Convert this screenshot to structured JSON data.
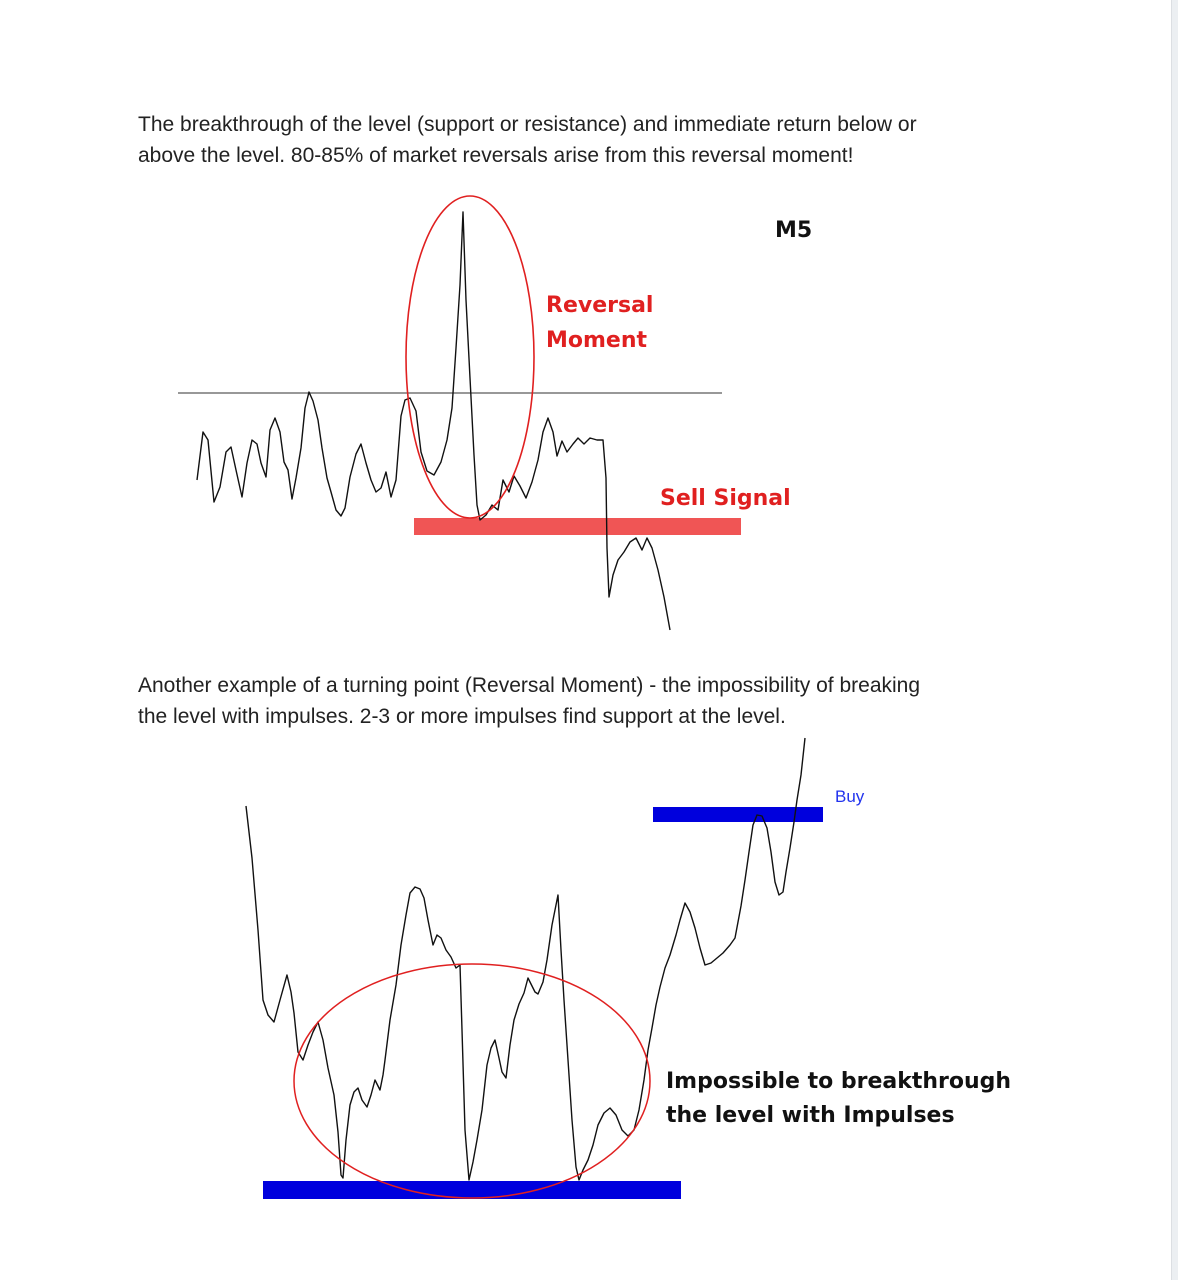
{
  "paragraph1": {
    "line1": "The breakthrough of the level (support or resistance) and immediate return below or",
    "line2": "above the level. 80-85% of market reversals arise from this reversal moment!"
  },
  "diagram1": {
    "timeframe_label": "M5",
    "reversal_label_line1": "Reversal",
    "reversal_label_line2": "Moment",
    "sell_label": "Sell Signal",
    "colors": {
      "highlight": "#e02020",
      "sell_bar": "#f05555",
      "line": "#111111",
      "level": "#777777"
    }
  },
  "paragraph2": {
    "line1": "Another example of a turning point (Reversal Moment) - the impossibility of breaking",
    "line2": "the level with impulses. 2-3 or more impulses find support at the level."
  },
  "diagram2": {
    "buy_label": "Buy",
    "impossible_label_line1": "Impossible to breakthrough",
    "impossible_label_line2": "the level with Impulses",
    "colors": {
      "bar": "#0000dd",
      "highlight": "#e02020",
      "buy_text": "#2233ee",
      "line": "#111111"
    }
  }
}
